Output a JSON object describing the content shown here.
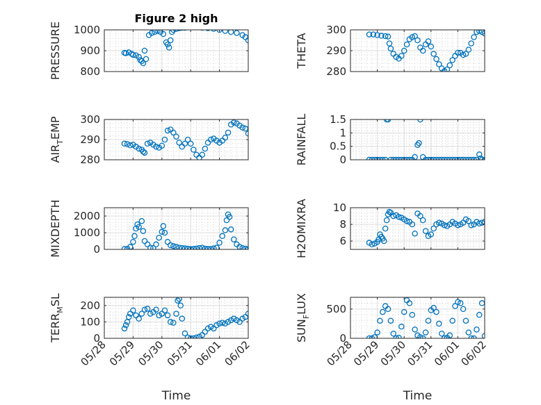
{
  "figure_title": "Figure 2 high",
  "colors": {
    "marker": "#0072BD",
    "axis": "#262626",
    "grid": "#dcdcdc",
    "minor_grid": "#c8c8c8"
  },
  "chart_data": [
    {
      "type": "scatter",
      "title": "Figure 2 high",
      "ylabel": "PRESSURE",
      "xlabel": "",
      "ylim": [
        800,
        1000
      ],
      "yticks": [
        800,
        900,
        1000
      ],
      "ytick_labels": [
        "800",
        "900",
        "1000"
      ],
      "xlim": [
        0,
        5
      ],
      "xticks": [
        0,
        1,
        2,
        3,
        4,
        5
      ],
      "xtick_labels": [],
      "grid": "on",
      "series": [
        {
          "x": [
            0.7,
            0.75,
            0.85,
            0.95,
            1.0,
            1.1,
            1.2,
            1.25,
            1.3,
            1.35,
            1.4,
            1.45,
            1.55,
            1.65,
            1.75,
            1.85,
            1.95,
            2.05,
            2.15,
            2.2,
            2.25,
            2.3,
            2.35,
            2.4,
            2.5,
            2.6,
            2.7,
            2.8,
            3.0,
            3.2,
            3.4,
            3.6,
            3.8,
            4.0,
            4.2,
            4.4,
            4.6,
            4.8,
            4.9,
            5.0
          ],
          "y": [
            890,
            888,
            892,
            885,
            880,
            878,
            870,
            855,
            850,
            840,
            900,
            860,
            975,
            985,
            990,
            995,
            990,
            980,
            940,
            930,
            915,
            950,
            990,
            1000,
            1005,
            1008,
            1010,
            1010,
            1012,
            1012,
            1010,
            1008,
            1005,
            1000,
            995,
            990,
            985,
            975,
            965,
            950
          ]
        }
      ]
    },
    {
      "type": "scatter",
      "ylabel": "THETA",
      "ylim": [
        280,
        300
      ],
      "yticks": [
        280,
        290,
        300
      ],
      "ytick_labels": [
        "280",
        "290",
        "300"
      ],
      "xlim": [
        0,
        5
      ],
      "xticks": [
        0,
        1,
        2,
        3,
        4,
        5
      ],
      "xtick_labels": [],
      "grid": "on",
      "series": [
        {
          "x": [
            0.7,
            0.85,
            1.0,
            1.15,
            1.3,
            1.4,
            1.45,
            1.5,
            1.6,
            1.7,
            1.8,
            1.9,
            2.0,
            2.1,
            2.2,
            2.3,
            2.4,
            2.5,
            2.6,
            2.7,
            2.8,
            2.9,
            3.0,
            3.1,
            3.2,
            3.3,
            3.4,
            3.5,
            3.6,
            3.7,
            3.8,
            3.9,
            4.0,
            4.1,
            4.2,
            4.3,
            4.4,
            4.5,
            4.6,
            4.7,
            4.8,
            4.9,
            5.0
          ],
          "y": [
            297.8,
            297.8,
            297.5,
            297.2,
            297.0,
            296.8,
            293.5,
            291.0,
            288.5,
            287.0,
            286.2,
            287.5,
            290.0,
            293.0,
            295.5,
            296.5,
            297.0,
            295.0,
            291.5,
            290.0,
            293.0,
            294.5,
            292.0,
            288.5,
            286.0,
            283.5,
            281.5,
            280.2,
            281.0,
            283.0,
            285.5,
            287.5,
            289.0,
            289.0,
            288.0,
            288.5,
            290.5,
            293.5,
            296.5,
            299.0,
            299.5,
            299.0,
            298.3
          ]
        }
      ]
    },
    {
      "type": "scatter",
      "ylabel": "AIR_TEMP",
      "ylabel_parts": [
        "AIR",
        "T",
        "EMP"
      ],
      "ylim": [
        280,
        300
      ],
      "yticks": [
        280,
        290,
        300
      ],
      "ytick_labels": [
        "280",
        "290",
        "300"
      ],
      "xlim": [
        0,
        5
      ],
      "xticks": [
        0,
        1,
        2,
        3,
        4,
        5
      ],
      "xtick_labels": [],
      "grid": "on",
      "series": [
        {
          "x": [
            0.7,
            0.8,
            0.9,
            1.0,
            1.1,
            1.2,
            1.3,
            1.35,
            1.4,
            1.5,
            1.6,
            1.7,
            1.8,
            1.9,
            2.0,
            2.1,
            2.2,
            2.3,
            2.4,
            2.5,
            2.6,
            2.7,
            2.8,
            2.9,
            3.0,
            3.1,
            3.2,
            3.3,
            3.4,
            3.5,
            3.6,
            3.7,
            3.8,
            3.9,
            4.0,
            4.1,
            4.2,
            4.3,
            4.4,
            4.5,
            4.6,
            4.7,
            4.8,
            4.9,
            5.0
          ],
          "y": [
            288.0,
            287.8,
            287.2,
            287.5,
            286.5,
            285.5,
            285.0,
            284.0,
            283.5,
            288.0,
            288.5,
            287.5,
            286.5,
            286.0,
            287.0,
            290.0,
            294.5,
            295.0,
            293.5,
            291.5,
            288.5,
            286.5,
            288.0,
            290.0,
            288.0,
            285.0,
            282.5,
            281.0,
            282.5,
            285.5,
            288.5,
            290.0,
            290.5,
            289.5,
            288.5,
            289.5,
            291.0,
            293.5,
            297.5,
            298.5,
            298.0,
            297.0,
            296.0,
            295.5,
            293.0
          ]
        }
      ]
    },
    {
      "type": "scatter",
      "ylabel": "RAINFALL",
      "ylim": [
        0,
        1.5
      ],
      "yticks": [
        0,
        0.5,
        1,
        1.5
      ],
      "ytick_labels": [
        "0",
        "0.5",
        "1",
        "1.5"
      ],
      "xlim": [
        0,
        5
      ],
      "xticks": [
        0,
        1,
        2,
        3,
        4,
        5
      ],
      "xtick_labels": [],
      "grid": "on",
      "series": [
        {
          "x": [
            0.7,
            0.8,
            0.9,
            1.0,
            1.1,
            1.2,
            1.3,
            1.35,
            1.4,
            1.5,
            1.6,
            1.7,
            1.8,
            1.9,
            2.0,
            2.1,
            2.2,
            2.3,
            2.4,
            2.5,
            2.55,
            2.6,
            2.7,
            2.8,
            2.9,
            3.0,
            3.1,
            3.2,
            3.3,
            3.4,
            3.5,
            3.6,
            3.7,
            3.8,
            3.9,
            4.0,
            4.1,
            4.2,
            4.3,
            4.4,
            4.5,
            4.6,
            4.7,
            4.8,
            4.85,
            4.9,
            5.0
          ],
          "y": [
            0,
            0,
            0,
            0,
            0,
            0,
            0,
            1.5,
            1.5,
            0,
            0,
            0,
            0,
            0,
            0,
            0,
            0,
            0,
            0.1,
            0.55,
            0.62,
            1.5,
            0.1,
            0,
            0,
            0,
            0,
            0,
            0,
            0,
            0,
            0,
            0,
            0,
            0,
            0,
            0,
            0,
            0,
            0,
            0,
            0,
            0,
            0.2,
            0.05,
            0,
            0
          ]
        }
      ]
    },
    {
      "type": "scatter",
      "ylabel": "MIXDEPTH",
      "ylim": [
        0,
        2500
      ],
      "yticks": [
        0,
        1000,
        2000
      ],
      "ytick_labels": [
        "0",
        "1000",
        "2000"
      ],
      "xlim": [
        0,
        5
      ],
      "xticks": [
        0,
        1,
        2,
        3,
        4,
        5
      ],
      "xtick_labels": [],
      "grid": "on",
      "series": [
        {
          "x": [
            0.7,
            0.8,
            0.9,
            1.0,
            1.05,
            1.1,
            1.15,
            1.2,
            1.25,
            1.3,
            1.35,
            1.4,
            1.5,
            1.6,
            1.7,
            1.8,
            1.9,
            2.0,
            2.05,
            2.1,
            2.2,
            2.3,
            2.4,
            2.5,
            2.6,
            2.7,
            2.8,
            2.9,
            3.0,
            3.1,
            3.2,
            3.3,
            3.4,
            3.5,
            3.6,
            3.7,
            3.8,
            3.9,
            4.0,
            4.1,
            4.2,
            4.25,
            4.3,
            4.35,
            4.4,
            4.5,
            4.6,
            4.7,
            4.8,
            4.9,
            5.0
          ],
          "y": [
            20,
            30,
            150,
            450,
            800,
            1250,
            1500,
            1350,
            2650,
            1700,
            1100,
            500,
            300,
            100,
            80,
            300,
            700,
            1050,
            1400,
            1000,
            450,
            250,
            200,
            150,
            100,
            80,
            60,
            40,
            20,
            30,
            50,
            80,
            100,
            40,
            30,
            20,
            60,
            100,
            400,
            800,
            1150,
            1750,
            2100,
            1950,
            1200,
            600,
            300,
            150,
            80,
            40,
            20
          ]
        }
      ]
    },
    {
      "type": "scatter",
      "ylabel": "H2OMIXRA",
      "ylim": [
        5,
        10
      ],
      "yticks": [
        6,
        8,
        10
      ],
      "ytick_labels": [
        "6",
        "8",
        "10"
      ],
      "xlim": [
        0,
        5
      ],
      "xticks": [
        0,
        1,
        2,
        3,
        4,
        5
      ],
      "xtick_labels": [],
      "grid": "on",
      "series": [
        {
          "x": [
            0.7,
            0.8,
            0.9,
            1.0,
            1.05,
            1.1,
            1.15,
            1.2,
            1.25,
            1.3,
            1.35,
            1.4,
            1.45,
            1.5,
            1.6,
            1.7,
            1.8,
            1.9,
            2.0,
            2.1,
            2.2,
            2.3,
            2.4,
            2.5,
            2.6,
            2.7,
            2.8,
            2.9,
            3.0,
            3.1,
            3.2,
            3.3,
            3.4,
            3.5,
            3.6,
            3.7,
            3.8,
            3.9,
            4.0,
            4.1,
            4.2,
            4.3,
            4.4,
            4.5,
            4.6,
            4.7,
            4.8,
            4.9,
            5.0
          ],
          "y": [
            5.8,
            5.6,
            5.7,
            5.9,
            6.2,
            6.8,
            6.5,
            6.3,
            6.0,
            7.5,
            8.5,
            9.2,
            9.5,
            9.4,
            9.0,
            9.1,
            8.9,
            8.8,
            8.6,
            8.4,
            8.3,
            8.0,
            6.9,
            9.3,
            9.0,
            8.5,
            7.2,
            6.6,
            6.8,
            7.5,
            8.0,
            8.2,
            8.1,
            7.9,
            7.8,
            8.0,
            8.3,
            8.1,
            7.9,
            8.0,
            8.2,
            8.6,
            8.4,
            7.9,
            8.0,
            8.3,
            8.1,
            8.2,
            8.3
          ]
        }
      ]
    },
    {
      "type": "scatter",
      "ylabel": "TERR_MSL",
      "ylabel_parts": [
        "TERR",
        "M",
        "SL"
      ],
      "ylim": [
        0,
        250
      ],
      "yticks": [
        0,
        100,
        200
      ],
      "ytick_labels": [
        "0",
        "100",
        "200"
      ],
      "xlim": [
        0,
        5
      ],
      "xticks": [
        0,
        1,
        2,
        3,
        4,
        5
      ],
      "xtick_labels": [
        "05/28",
        "05/29",
        "05/30",
        "05/31",
        "06/01",
        "06/02"
      ],
      "xlabel": "Time",
      "grid": "on",
      "series": [
        {
          "x": [
            0.7,
            0.75,
            0.8,
            0.85,
            0.9,
            1.0,
            1.1,
            1.2,
            1.3,
            1.4,
            1.5,
            1.6,
            1.7,
            1.8,
            1.9,
            2.0,
            2.1,
            2.2,
            2.3,
            2.4,
            2.5,
            2.55,
            2.6,
            2.65,
            2.7,
            2.8,
            2.9,
            3.0,
            3.1,
            3.2,
            3.3,
            3.4,
            3.5,
            3.6,
            3.7,
            3.8,
            3.9,
            4.0,
            4.1,
            4.2,
            4.3,
            4.4,
            4.5,
            4.6,
            4.7,
            4.8,
            4.9,
            5.0
          ],
          "y": [
            60,
            80,
            100,
            130,
            150,
            170,
            140,
            120,
            150,
            175,
            180,
            150,
            160,
            175,
            140,
            150,
            170,
            140,
            100,
            95,
            150,
            230,
            240,
            200,
            120,
            30,
            5,
            0,
            0,
            5,
            10,
            20,
            40,
            60,
            70,
            60,
            80,
            90,
            95,
            90,
            100,
            110,
            120,
            110,
            100,
            120,
            130,
            150
          ]
        }
      ]
    },
    {
      "type": "scatter",
      "ylabel": "SUN_FLUX",
      "ylabel_parts": [
        "SUN",
        "F",
        "LUX"
      ],
      "ylim": [
        0,
        700
      ],
      "yticks": [
        0,
        500
      ],
      "ytick_labels": [
        "0",
        "500"
      ],
      "xlim": [
        0,
        5
      ],
      "xticks": [
        0,
        1,
        2,
        3,
        4,
        5
      ],
      "xtick_labels": [
        "05/28",
        "05/29",
        "05/30",
        "05/31",
        "06/01",
        "06/02"
      ],
      "xlabel": "Time",
      "grid": "on",
      "series": [
        {
          "x": [
            0.7,
            0.8,
            0.9,
            1.0,
            1.1,
            1.2,
            1.3,
            1.4,
            1.5,
            1.6,
            1.7,
            1.8,
            1.9,
            2.0,
            2.1,
            2.2,
            2.3,
            2.4,
            2.5,
            2.6,
            2.7,
            2.8,
            2.9,
            3.0,
            3.1,
            3.2,
            3.3,
            3.4,
            3.5,
            3.6,
            3.7,
            3.8,
            3.9,
            4.0,
            4.1,
            4.2,
            4.3,
            4.4,
            4.5,
            4.6,
            4.7,
            4.8,
            4.9,
            5.0
          ],
          "y": [
            0,
            0,
            20,
            100,
            300,
            450,
            550,
            500,
            300,
            80,
            0,
            10,
            200,
            450,
            650,
            600,
            400,
            150,
            50,
            20,
            0,
            100,
            300,
            480,
            520,
            450,
            250,
            80,
            0,
            10,
            50,
            300,
            550,
            620,
            600,
            500,
            300,
            100,
            0,
            0,
            150,
            400,
            600,
            40
          ]
        }
      ]
    }
  ]
}
